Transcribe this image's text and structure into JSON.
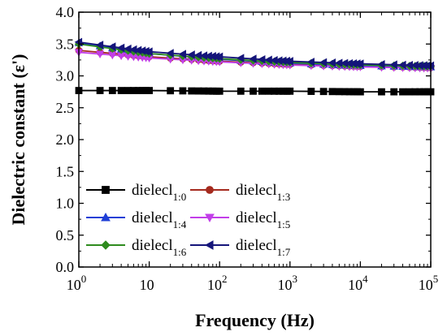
{
  "chart_data": {
    "type": "line",
    "xlabel": "Frequency (Hz)",
    "ylabel": "Dielectric constant (ε')",
    "x_scale": "log",
    "xlim": [
      1,
      100000
    ],
    "ylim": [
      0.0,
      4.0
    ],
    "x_ticks": [
      {
        "value": 1,
        "base": "10",
        "exp": "0"
      },
      {
        "value": 10,
        "base": "10",
        "exp": ""
      },
      {
        "value": 100,
        "base": "10",
        "exp": "2"
      },
      {
        "value": 1000,
        "base": "10",
        "exp": "3"
      },
      {
        "value": 10000,
        "base": "10",
        "exp": "4"
      },
      {
        "value": 100000,
        "base": "10",
        "exp": "5"
      }
    ],
    "y_ticks": [
      "0.0",
      "0.5",
      "1.0",
      "1.5",
      "2.0",
      "2.5",
      "3.0",
      "3.5",
      "4.0"
    ],
    "grid": false,
    "legend_position": "bottom-center",
    "series": [
      {
        "name": "dielecl",
        "sub": "1:0",
        "color": "#000000",
        "marker": "square",
        "x": [
          1,
          10,
          100,
          1000,
          10000,
          100000
        ],
        "y": [
          2.77,
          2.77,
          2.76,
          2.76,
          2.75,
          2.75
        ]
      },
      {
        "name": "dielecl",
        "sub": "1:3",
        "color": "#a52a1e",
        "marker": "circle",
        "x": [
          1,
          10,
          100,
          1000,
          10000,
          100000
        ],
        "y": [
          3.4,
          3.3,
          3.23,
          3.18,
          3.15,
          3.13
        ]
      },
      {
        "name": "dielecl",
        "sub": "1:4",
        "color": "#1f3fd6",
        "marker": "triangle-up",
        "x": [
          1,
          10,
          100,
          1000,
          10000,
          100000
        ],
        "y": [
          3.52,
          3.35,
          3.26,
          3.2,
          3.16,
          3.14
        ]
      },
      {
        "name": "dielecl",
        "sub": "1:5",
        "color": "#c23ee8",
        "marker": "triangle-down",
        "x": [
          1,
          10,
          100,
          1000,
          10000,
          100000
        ],
        "y": [
          3.37,
          3.28,
          3.22,
          3.17,
          3.14,
          3.12
        ]
      },
      {
        "name": "dielecl",
        "sub": "1:6",
        "color": "#2e8b1e",
        "marker": "diamond",
        "x": [
          1,
          10,
          100,
          1000,
          10000,
          100000
        ],
        "y": [
          3.5,
          3.35,
          3.27,
          3.21,
          3.17,
          3.15
        ]
      },
      {
        "name": "dielecl",
        "sub": "1:7",
        "color": "#15157a",
        "marker": "triangle-left",
        "x": [
          1,
          10,
          100,
          1000,
          10000,
          100000
        ],
        "y": [
          3.53,
          3.38,
          3.3,
          3.23,
          3.19,
          3.16
        ]
      }
    ]
  }
}
